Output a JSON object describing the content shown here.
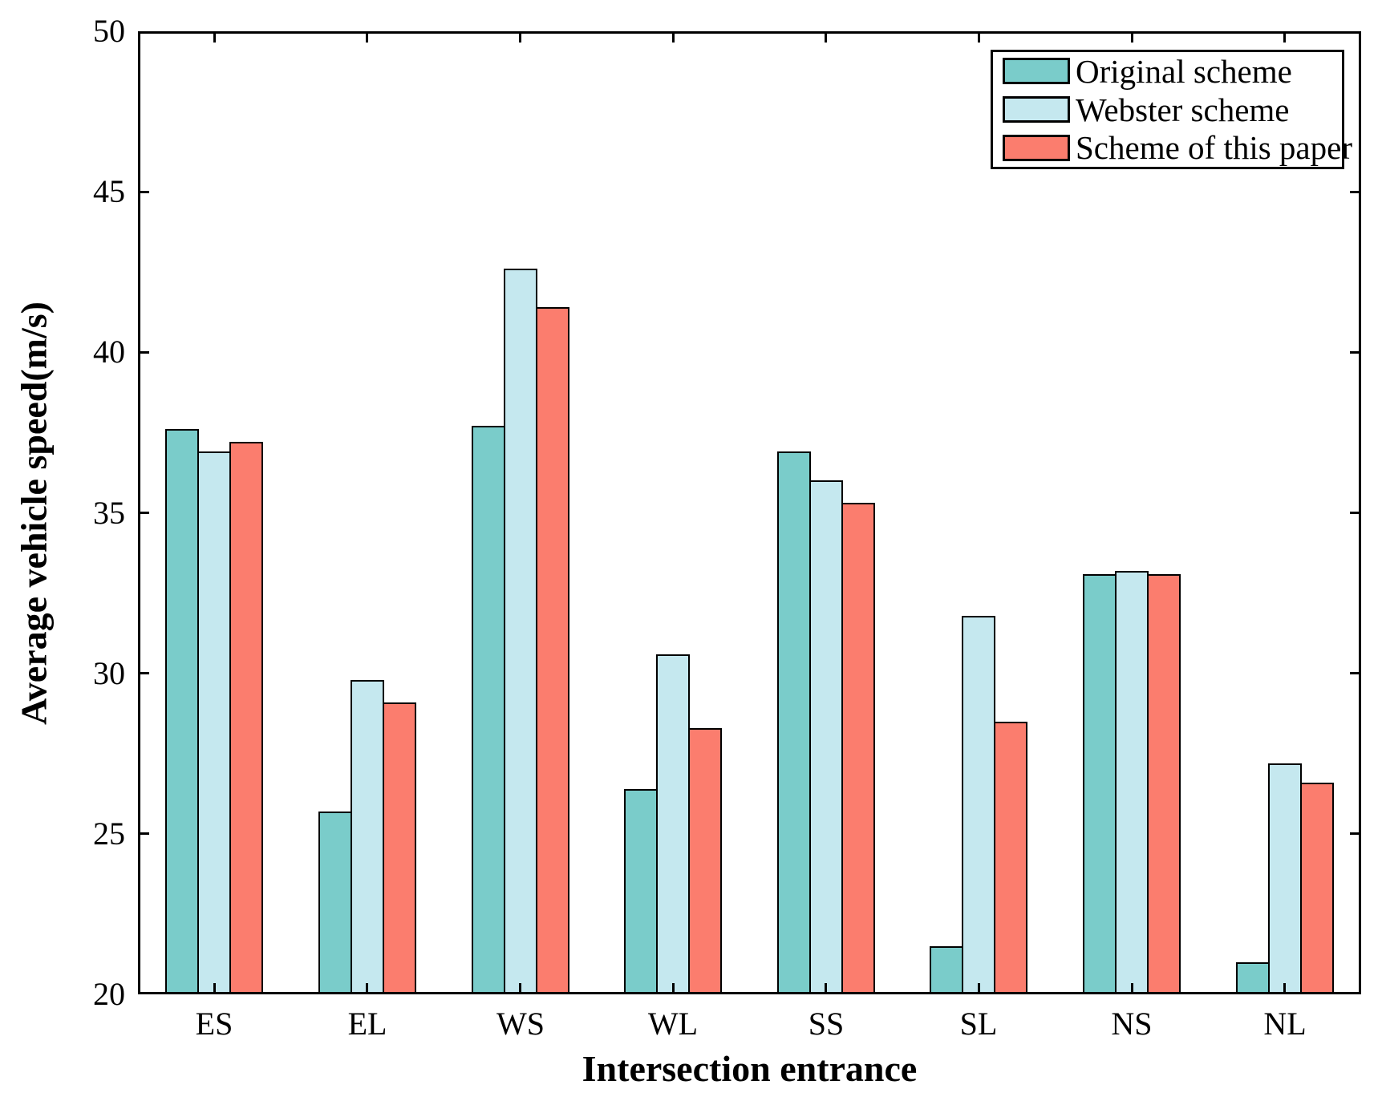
{
  "chart_data": {
    "type": "bar",
    "title": "",
    "xlabel": "Intersection entrance",
    "ylabel": "Average vehicle speed(m/s)",
    "categories": [
      "ES",
      "EL",
      "WS",
      "WL",
      "SS",
      "SL",
      "NS",
      "NL"
    ],
    "series": [
      {
        "name": "Original scheme",
        "color": "#7ACCCA",
        "values": [
          37.6,
          25.7,
          37.7,
          26.4,
          36.9,
          21.5,
          33.1,
          21.0
        ]
      },
      {
        "name": "Webster scheme",
        "color": "#C5E8EF",
        "values": [
          36.9,
          29.8,
          42.6,
          30.6,
          36.0,
          31.8,
          33.2,
          27.2
        ]
      },
      {
        "name": "Scheme of this paper",
        "color": "#FB7D6E",
        "values": [
          37.2,
          29.1,
          41.4,
          28.3,
          35.3,
          28.5,
          33.1,
          26.6
        ]
      }
    ],
    "ylim": [
      20,
      50
    ],
    "yticks": [
      20,
      25,
      30,
      35,
      40,
      45,
      50
    ],
    "grid": false,
    "legend_position": "top-right",
    "bar_border_color": "#000000",
    "axis_color": "#000000"
  }
}
